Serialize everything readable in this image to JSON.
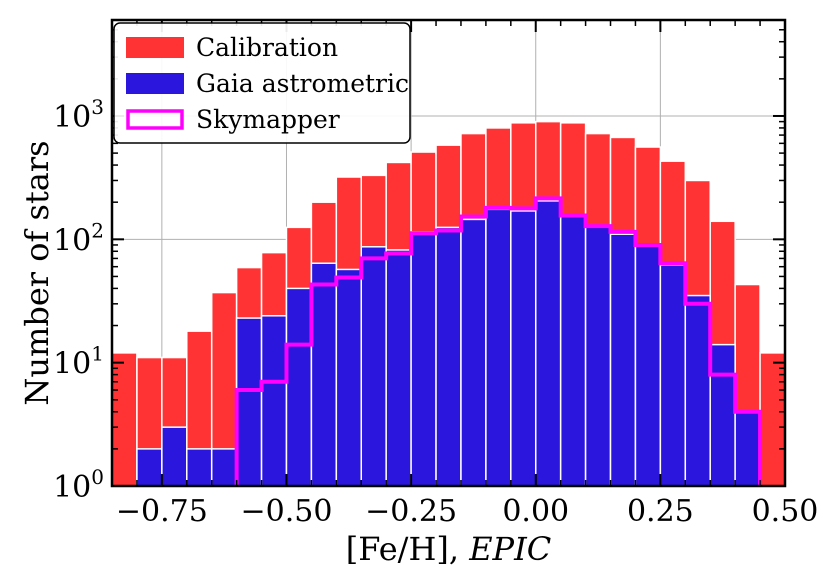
{
  "chart_data": {
    "type": "bar",
    "subtype": "histogram",
    "xlabel_main": "[Fe/H], ",
    "xlabel_italic": "EPIC",
    "ylabel": "Number of stars",
    "xlim": [
      -0.85,
      0.5
    ],
    "ylim": [
      1,
      6000
    ],
    "y_scale": "log",
    "grid": true,
    "legend_position": "top-left",
    "bin_width": 0.05,
    "bin_left_edges": [
      -0.85,
      -0.8,
      -0.75,
      -0.7,
      -0.65,
      -0.6,
      -0.55,
      -0.5,
      -0.45,
      -0.4,
      -0.35,
      -0.3,
      -0.25,
      -0.2,
      -0.15,
      -0.1,
      -0.05,
      0.0,
      0.05,
      0.1,
      0.15,
      0.2,
      0.25,
      0.3,
      0.35,
      0.4,
      0.45
    ],
    "x_ticks": [
      -0.75,
      -0.5,
      -0.25,
      0.0,
      0.25,
      0.5
    ],
    "x_tick_labels": [
      "−0.75",
      "−0.50",
      "−0.25",
      "0.00",
      "0.25",
      "0.50"
    ],
    "y_ticks": [
      1,
      10,
      100,
      1000
    ],
    "y_tick_labels": [
      {
        "base": "10",
        "exp": "0"
      },
      {
        "base": "10",
        "exp": "1"
      },
      {
        "base": "10",
        "exp": "2"
      },
      {
        "base": "10",
        "exp": "3"
      }
    ],
    "series": [
      {
        "name": "Calibration",
        "style": "filled",
        "color": "#ff3333",
        "values": [
          12,
          11,
          11,
          18,
          37,
          59,
          78,
          125,
          200,
          320,
          330,
          420,
          510,
          580,
          720,
          800,
          880,
          900,
          880,
          720,
          670,
          560,
          430,
          300,
          140,
          43,
          12
        ]
      },
      {
        "name": "Gaia astrometric",
        "style": "filled",
        "color": "#2a16dd",
        "values": [
          0,
          2,
          3,
          2,
          2,
          23,
          24,
          40,
          64,
          57,
          87,
          82,
          115,
          125,
          145,
          175,
          170,
          205,
          155,
          130,
          110,
          90,
          62,
          35,
          14,
          4,
          0
        ]
      },
      {
        "name": "Skymapper",
        "style": "step",
        "color": "#ff00ff",
        "values": [
          0,
          0,
          0,
          0,
          0,
          6,
          7,
          14,
          43,
          49,
          70,
          77,
          112,
          118,
          153,
          180,
          178,
          215,
          156,
          128,
          115,
          90,
          64,
          30,
          8,
          4,
          0
        ]
      }
    ]
  }
}
